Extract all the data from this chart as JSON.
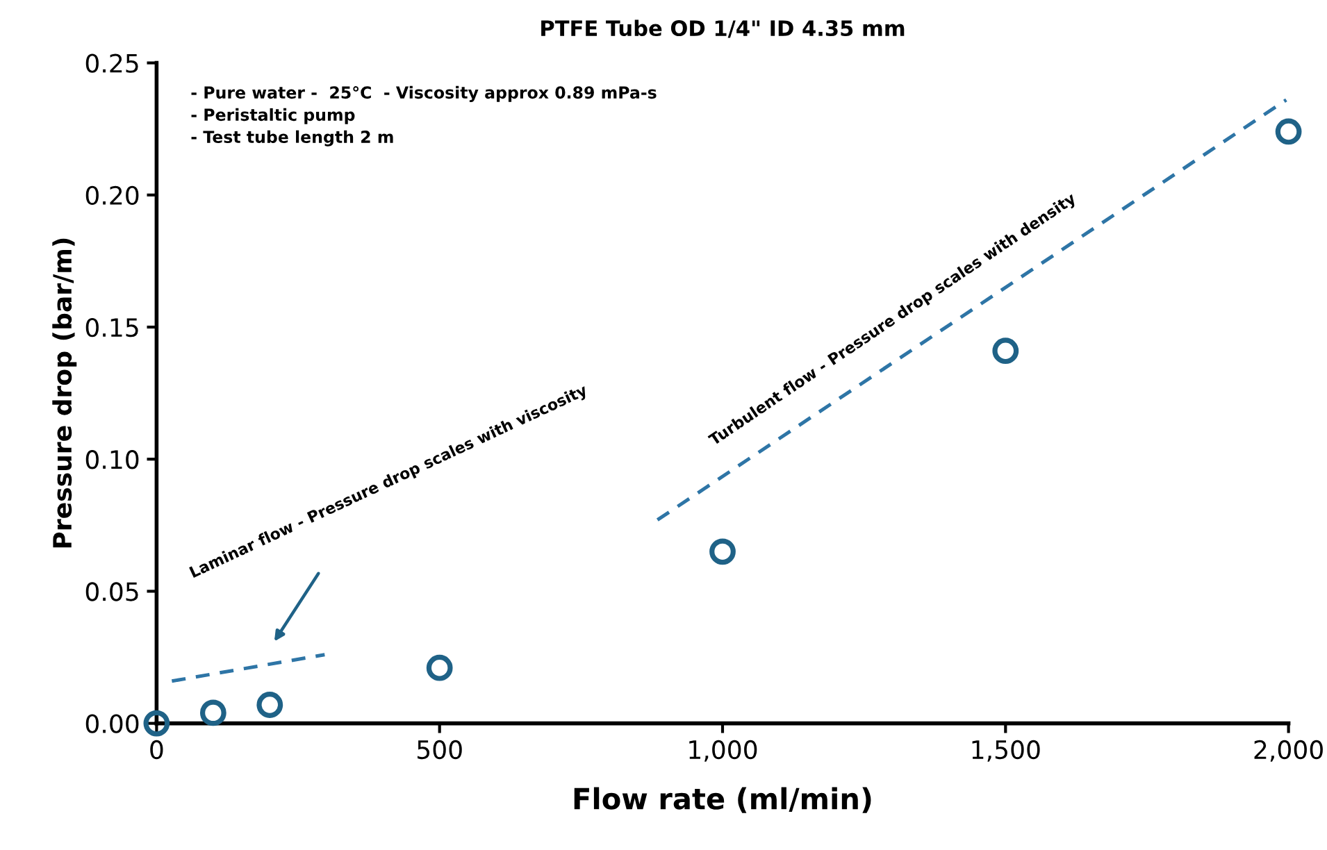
{
  "chart_data": {
    "type": "scatter",
    "title": "PTFE Tube OD 1/4\" ID 4.35 mm",
    "xlabel": "Flow rate (ml/min)",
    "ylabel": "Pressure drop (bar/m)",
    "x": [
      0,
      100,
      200,
      500,
      1000,
      1500,
      2000
    ],
    "series": [
      {
        "color": "#1f6287",
        "marker": "circle",
        "values": [
          0,
          0.004,
          0.007,
          0.021,
          0.065,
          0.141,
          0.224
        ]
      },
      {
        "type": "line",
        "color": "#2e75a6",
        "line_style": "dashed",
        "marker": "none",
        "x": [
          27,
          297
        ],
        "values": [
          0.016,
          0.026
        ]
      },
      {
        "type": "line",
        "color": "#2e75a6",
        "line_style": "dashed",
        "marker": "none",
        "x": [
          885,
          1996
        ],
        "values": [
          0.077,
          0.236
        ]
      }
    ],
    "xlim": [
      0,
      2000
    ],
    "ylim": [
      0,
      0.25
    ],
    "xticks": [
      0,
      500,
      {
        "value": 1000,
        "label": "1,000"
      },
      {
        "value": 1500,
        "label": "1,500"
      },
      {
        "value": 2000,
        "label": "2,000"
      }
    ],
    "yticks": [
      {
        "value": 0,
        "label": "0.00"
      },
      0.05,
      {
        "value": 0.1,
        "label": "0.10"
      },
      0.15,
      {
        "value": 0.2,
        "label": "0.20"
      },
      0.25
    ],
    "grid": false,
    "legend": false,
    "annotations": [
      "- Pure water -  25°C  - Viscosity approx 0.89 mPa-s\n- Peristaltic pump\n- Test tube length 2 m",
      "Laminar flow - Pressure drop scales with viscosity",
      "Turbulent flow - Pressure drop scales with density"
    ]
  }
}
